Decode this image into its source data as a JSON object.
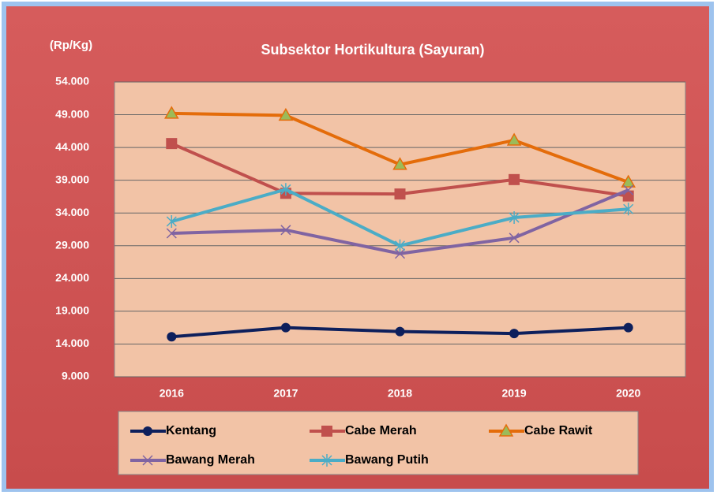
{
  "chart_data": {
    "type": "line",
    "title": "Subsektor Hortikultura (Sayuran)",
    "y_label": "(Rp/Kg)",
    "categories": [
      "2016",
      "2017",
      "2018",
      "2019",
      "2020"
    ],
    "ylim": [
      9000,
      54000
    ],
    "yticks": [
      {
        "value": 9000,
        "label": "9.000"
      },
      {
        "value": 14000,
        "label": "14.000"
      },
      {
        "value": 19000,
        "label": "19.000"
      },
      {
        "value": 24000,
        "label": "24.000"
      },
      {
        "value": 29000,
        "label": "29.000"
      },
      {
        "value": 34000,
        "label": "34.000"
      },
      {
        "value": 39000,
        "label": "39.000"
      },
      {
        "value": 44000,
        "label": "44.000"
      },
      {
        "value": 49000,
        "label": "49.000"
      },
      {
        "value": 54000,
        "label": "54.000"
      }
    ],
    "grid": true,
    "series": [
      {
        "name": "Kentang",
        "color": "#0d1f5c",
        "marker": "circle",
        "values": [
          15100,
          16500,
          15900,
          15600,
          16500
        ]
      },
      {
        "name": "Cabe Merah",
        "color": "#c0504d",
        "marker": "square",
        "values": [
          44600,
          37000,
          36900,
          39100,
          36600
        ]
      },
      {
        "name": "Cabe Rawit",
        "color": "#e46c0a",
        "marker": "triangle",
        "values": [
          49200,
          48900,
          41400,
          45100,
          38700
        ]
      },
      {
        "name": "Bawang Merah",
        "color": "#8064a2",
        "marker": "x",
        "values": [
          30900,
          31400,
          27800,
          30200,
          37500
        ]
      },
      {
        "name": "Bawang Putih",
        "color": "#4bacc6",
        "marker": "star",
        "values": [
          32700,
          37600,
          29000,
          33300,
          34600
        ]
      }
    ]
  }
}
